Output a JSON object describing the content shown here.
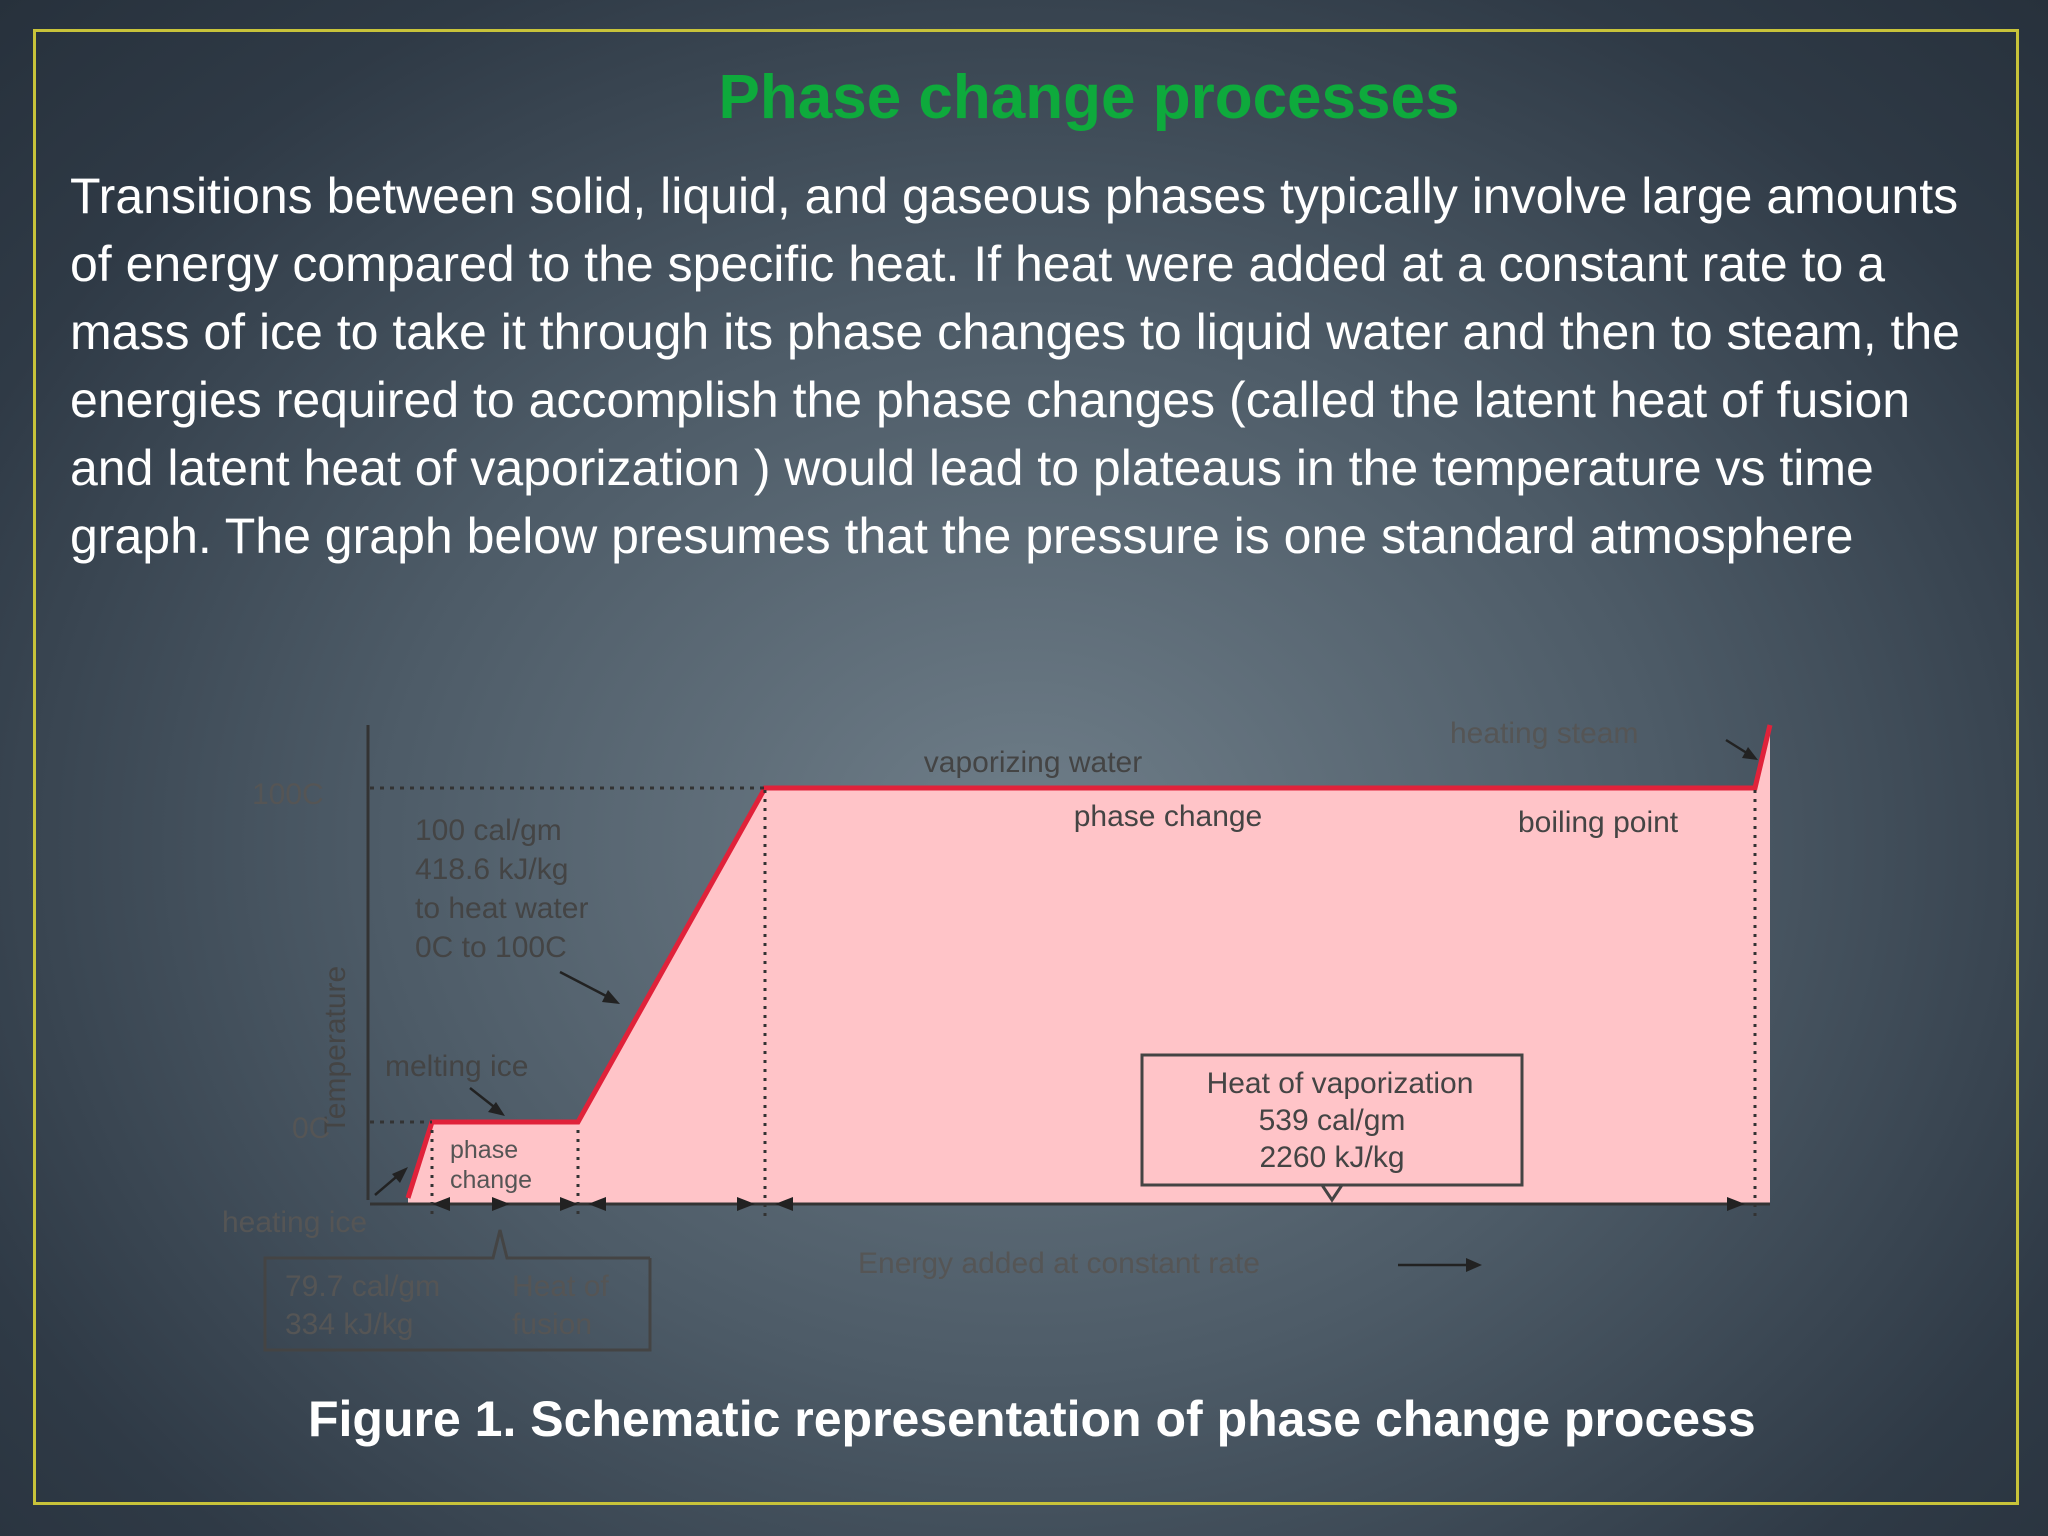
{
  "slide": {
    "title": "Phase change processes",
    "body": "Transitions between solid, liquid, and gaseous phases typically involve large amounts of energy compared to the specific heat. If heat were added at a constant rate to a mass of ice to take it through its phase changes to liquid water and then to steam, the energies required to accomplish the phase changes (called the latent heat of fusion and latent heat of vaporization ) would lead to plateaus in the temperature vs time graph. The graph below presumes that the pressure is one standard atmosphere",
    "caption": "Figure 1. Schematic representation of phase change process"
  },
  "figure": {
    "y_axis_label": "Temperature",
    "x_axis_label": "Energy added at constant rate",
    "tick_100": "100C",
    "tick_0": "0C",
    "label_heating_ice": "heating ice",
    "label_melting_ice": "melting ice",
    "label_phase_change_small_1": "phase",
    "label_phase_change_small_2": "change",
    "heat_water_lines": [
      "100 cal/gm",
      "418.6 kJ/kg",
      "to heat water",
      "0C to 100C"
    ],
    "label_vaporizing": "vaporizing water",
    "label_phase_change": "phase change",
    "label_heating_steam": "heating steam",
    "label_boiling_point": "boiling point",
    "vaporization_box": [
      "Heat of vaporization",
      "539 cal/gm",
      "2260 kJ/kg"
    ],
    "fusion_box": [
      "79.7 cal/gm",
      "334 kJ/kg",
      "Heat of",
      "fusion"
    ],
    "colors": {
      "fill": "#ffc4c8",
      "line": "#e0223a",
      "text": "#444444"
    }
  }
}
